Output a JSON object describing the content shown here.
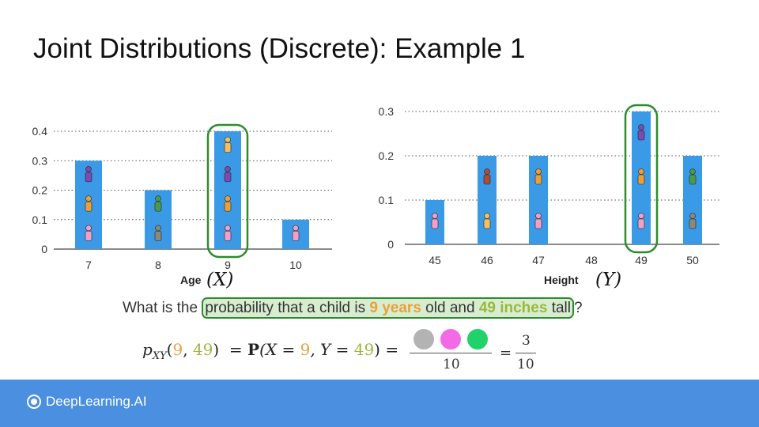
{
  "title": "Joint Distributions (Discrete): Example 1",
  "chart_data": [
    {
      "type": "bar",
      "categories": [
        "7",
        "8",
        "9",
        "10"
      ],
      "values": [
        0.3,
        0.2,
        0.4,
        0.1
      ],
      "xlabel": "Age",
      "xvar": "(X)",
      "ylim": [
        0,
        0.4
      ],
      "yticks": [
        "0",
        "0.1",
        "0.2",
        "0.3",
        "0.4"
      ],
      "grid": true,
      "highlight": "9"
    },
    {
      "type": "bar",
      "categories": [
        "45",
        "46",
        "47",
        "48",
        "49",
        "50"
      ],
      "values": [
        0.1,
        0.2,
        0.2,
        0,
        0.3,
        0.2
      ],
      "xlabel": "Height",
      "xvar": "(Y)",
      "ylim": [
        0,
        0.3
      ],
      "yticks": [
        "0",
        "0.1",
        "0.2",
        "0.3"
      ],
      "grid": true,
      "highlight": "49"
    }
  ],
  "question": {
    "prefix": "What is the ",
    "h1": "probability that a child is ",
    "age": "9 years",
    "mid": " old and ",
    "height": "49 inches",
    "h2": " tall",
    "suffix": "?"
  },
  "formula": {
    "p": "p",
    "sub": "XY",
    "open": "(",
    "x": "9",
    "comma": ", ",
    "y": "49",
    "close": ")",
    "eq1": "  = ",
    "P": "P",
    "pmid1": "(X = ",
    "px": "9",
    "pmid2": ", Y = ",
    "py": "49",
    "pend": ") = "
  },
  "fraction_left": {
    "denominator": "10"
  },
  "fraction_right": {
    "eq": "=",
    "numerator": "3",
    "denominator": "10"
  },
  "highlight_dots": [
    "#b3b3b3",
    "#f36ae6",
    "#1fd36a"
  ],
  "colors": {
    "bar": "#3b9ae6",
    "highlight": "#2e8b2e",
    "footer": "#4a8fe0",
    "orange": "#e8a13a",
    "olive": "#9bb83c"
  },
  "footer": {
    "brand": "DeepLearning.AI"
  }
}
